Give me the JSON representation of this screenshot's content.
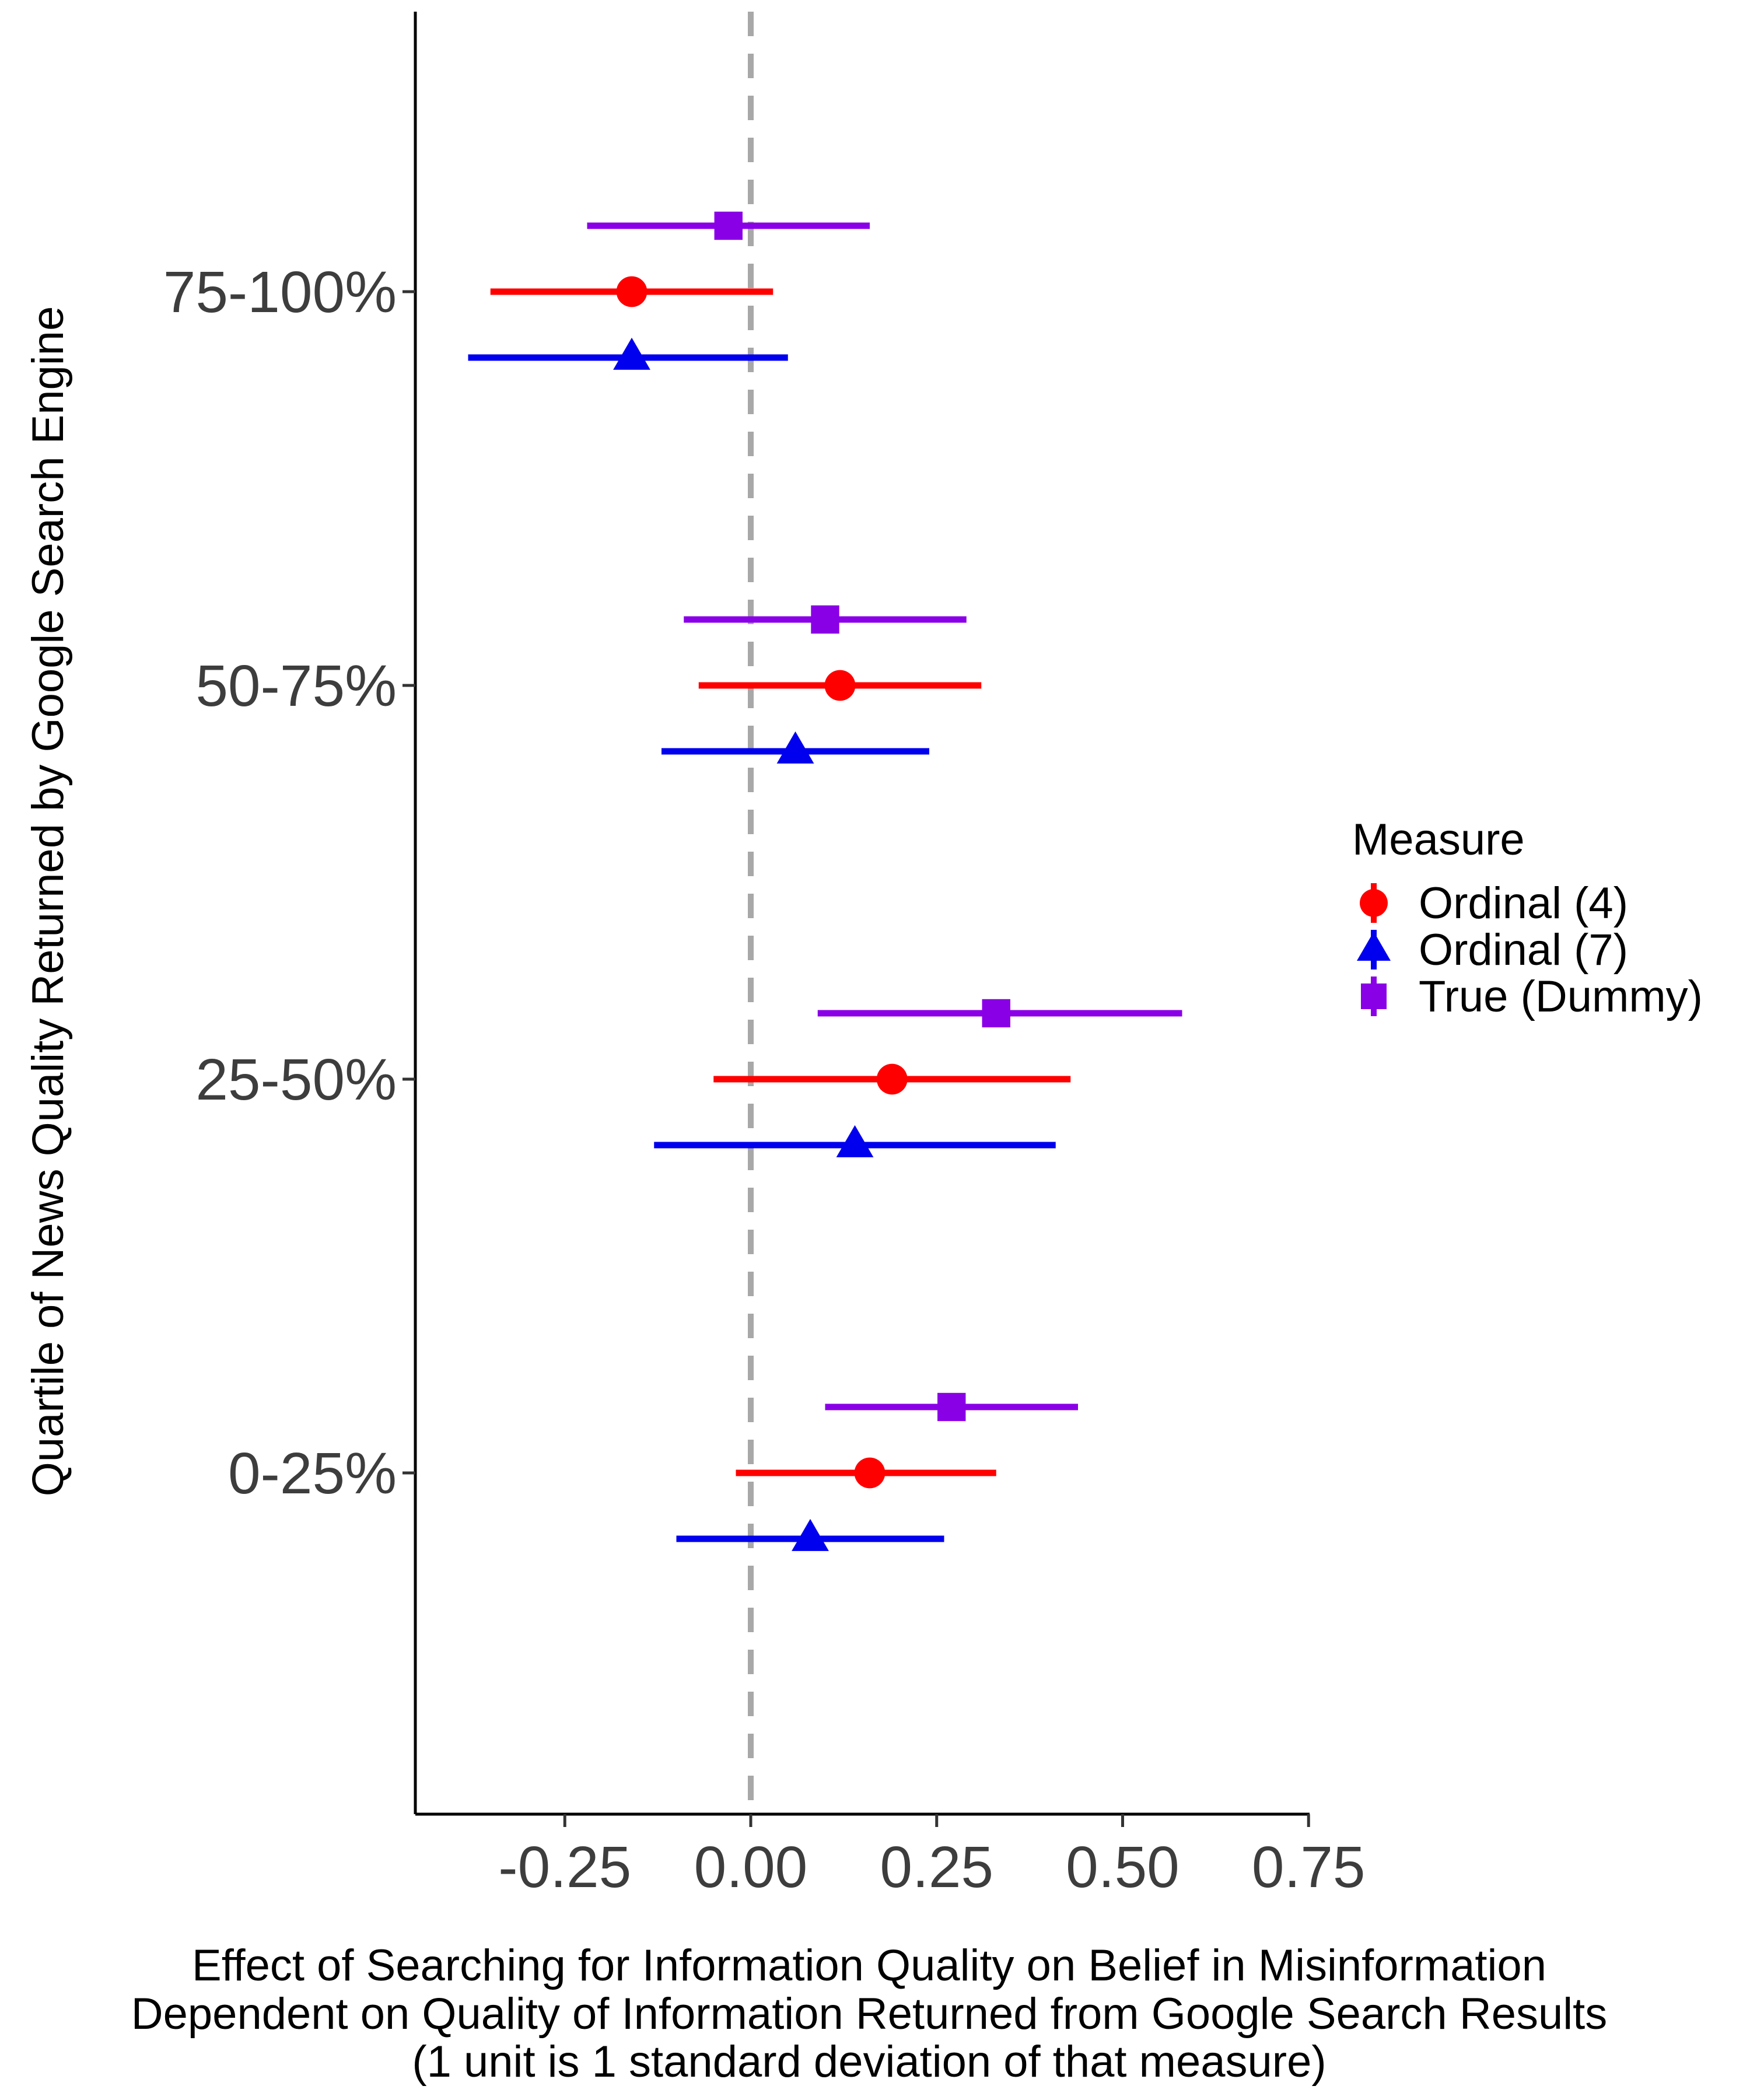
{
  "chart_data": {
    "type": "scatter",
    "subtype": "coefficient-plot-with-confidence-intervals",
    "ylabel": "Quartile of News Quality Returned by Google Search Engine",
    "xlabel_lines": [
      "Effect of Searching for Information Quality on Belief in Misinformation",
      "Dependent on Quality of Information Returned from Google Search Results",
      "(1 unit is 1 standard deviation of that measure)"
    ],
    "xlim": [
      -0.45,
      0.75
    ],
    "x_ticks": [
      -0.25,
      0.0,
      0.25,
      0.5,
      0.75
    ],
    "x_tick_labels": [
      "-0.25",
      "0.00",
      "0.25",
      "0.50",
      "0.75"
    ],
    "reference_line": 0.0,
    "categories": [
      "75-100%",
      "50-75%",
      "25-50%",
      "0-25%"
    ],
    "legend": {
      "title": "Measure",
      "placement": "right"
    },
    "series": [
      {
        "name": "Ordinal (4)",
        "color": "#ff0000",
        "shape": "circle",
        "points": [
          {
            "category": "75-100%",
            "estimate": -0.16,
            "lower": -0.35,
            "upper": 0.03
          },
          {
            "category": "50-75%",
            "estimate": 0.12,
            "lower": -0.07,
            "upper": 0.31
          },
          {
            "category": "25-50%",
            "estimate": 0.19,
            "lower": -0.05,
            "upper": 0.43
          },
          {
            "category": "0-25%",
            "estimate": 0.16,
            "lower": -0.02,
            "upper": 0.33
          }
        ]
      },
      {
        "name": "Ordinal (7)",
        "color": "#0000ee",
        "shape": "triangle",
        "points": [
          {
            "category": "75-100%",
            "estimate": -0.16,
            "lower": -0.38,
            "upper": 0.05
          },
          {
            "category": "50-75%",
            "estimate": 0.06,
            "lower": -0.12,
            "upper": 0.24
          },
          {
            "category": "25-50%",
            "estimate": 0.14,
            "lower": -0.13,
            "upper": 0.41
          },
          {
            "category": "0-25%",
            "estimate": 0.08,
            "lower": -0.1,
            "upper": 0.26
          }
        ]
      },
      {
        "name": "True (Dummy)",
        "color": "#8a00e6",
        "shape": "square",
        "points": [
          {
            "category": "75-100%",
            "estimate": -0.03,
            "lower": -0.22,
            "upper": 0.16
          },
          {
            "category": "50-75%",
            "estimate": 0.1,
            "lower": -0.09,
            "upper": 0.29
          },
          {
            "category": "25-50%",
            "estimate": 0.33,
            "lower": 0.09,
            "upper": 0.58
          },
          {
            "category": "0-25%",
            "estimate": 0.27,
            "lower": 0.1,
            "upper": 0.44
          }
        ]
      }
    ]
  }
}
